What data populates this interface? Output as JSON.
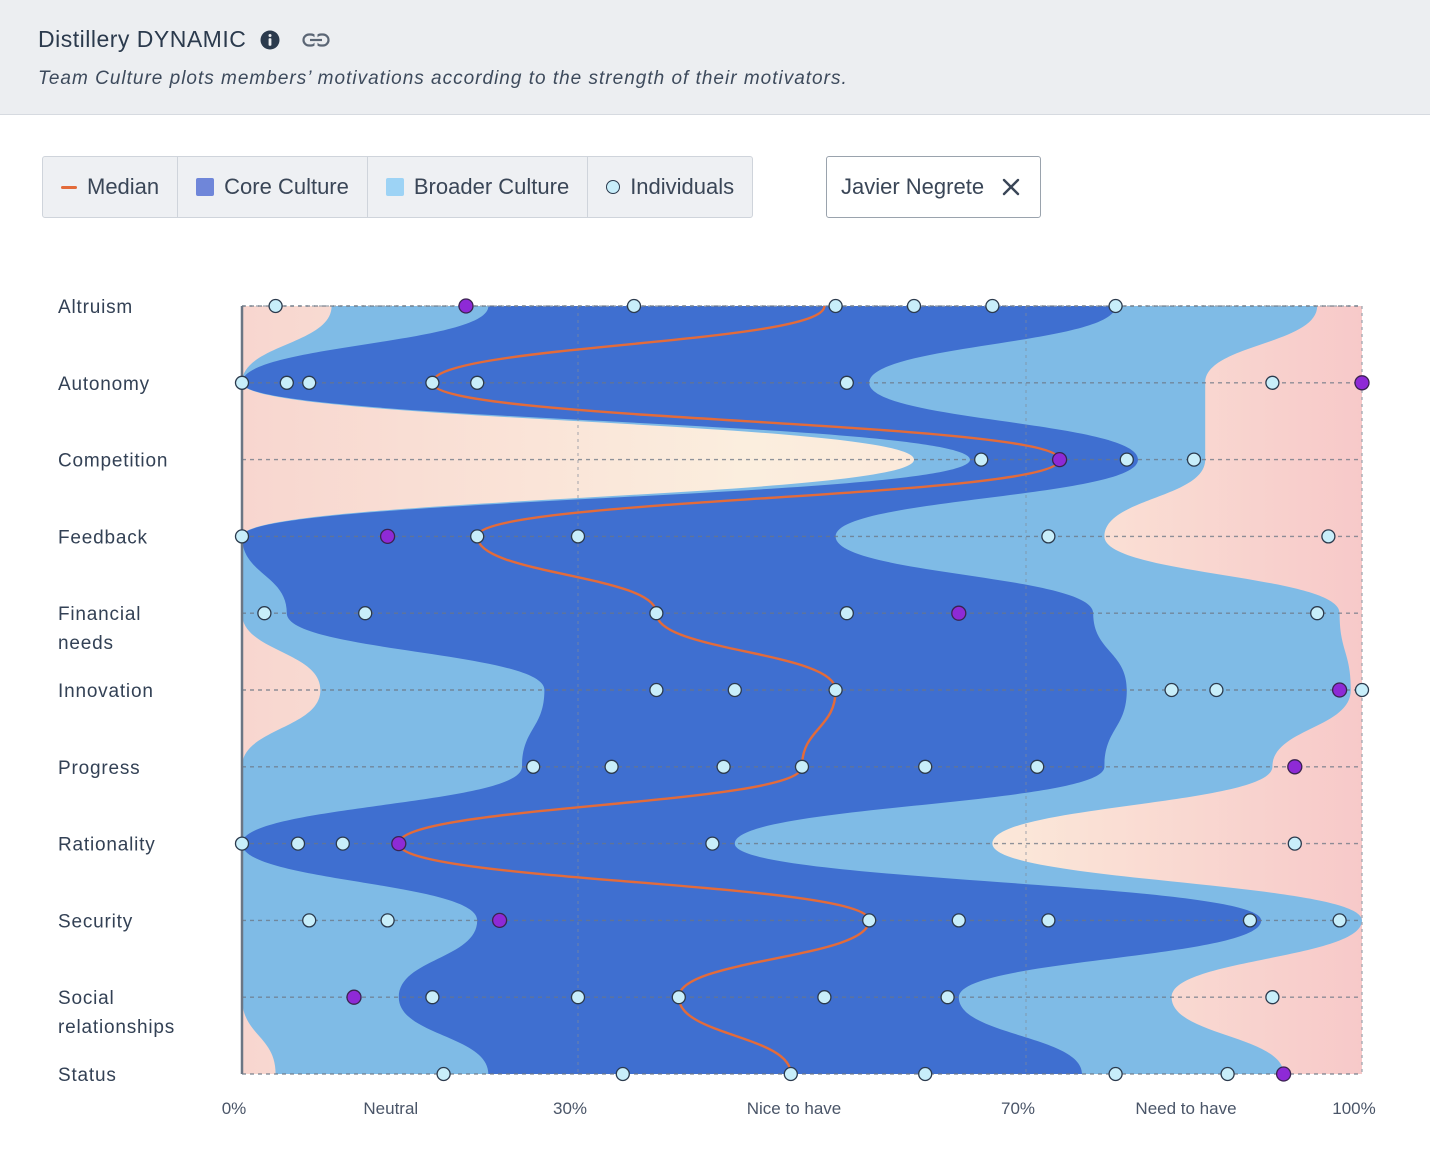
{
  "header": {
    "title": "Distillery DYNAMIC",
    "subtitle": "Team Culture plots members’ motivations according to the strength of their motivators."
  },
  "legend": {
    "median": "Median",
    "core": "Core Culture",
    "broader": "Broader Culture",
    "individuals": "Individuals"
  },
  "selected_person": "Javier Negrete",
  "colors": {
    "core": "#3f6fd0",
    "broader": "#7fbbe6",
    "background_low": "#f8d3cf",
    "background_mid": "#fbe9d6",
    "median": "#e36b3a",
    "individual": "#c8eefa",
    "highlight": "#8e2ad6"
  },
  "chart_data": {
    "type": "scatter",
    "xlim": [
      0,
      100
    ],
    "x_ticks": [
      {
        "value": 0,
        "label": "0%"
      },
      {
        "value": 14,
        "label": "Neutral"
      },
      {
        "value": 30,
        "label": "30%"
      },
      {
        "value": 50,
        "label": "Nice to have"
      },
      {
        "value": 70,
        "label": "70%"
      },
      {
        "value": 85,
        "label": "Need to have"
      },
      {
        "value": 100,
        "label": "100%"
      }
    ],
    "categories": [
      {
        "name": [
          "Altruism"
        ],
        "individuals": [
          3,
          35,
          53,
          60,
          67,
          78
        ],
        "highlight": 20,
        "median": 52,
        "core": [
          22,
          78
        ],
        "broader": [
          8,
          96
        ]
      },
      {
        "name": [
          "Autonomy"
        ],
        "individuals": [
          0,
          4,
          6,
          17,
          21,
          54,
          92
        ],
        "highlight": 100,
        "median": 17,
        "core": [
          0,
          56
        ],
        "broader": [
          0,
          86
        ]
      },
      {
        "name": [
          "Competition"
        ],
        "individuals": [
          66,
          79,
          85
        ],
        "highlight": 73,
        "median": 73,
        "core": [
          65,
          80
        ],
        "broader": [
          60,
          86
        ]
      },
      {
        "name": [
          "Feedback"
        ],
        "individuals": [
          0,
          21,
          30,
          72,
          97
        ],
        "highlight": 13,
        "median": 21,
        "core": [
          0,
          53
        ],
        "broader": [
          0,
          77
        ]
      },
      {
        "name": [
          "Financial",
          "needs"
        ],
        "individuals": [
          2,
          11,
          37,
          54,
          96
        ],
        "highlight": 64,
        "median": 37,
        "core": [
          4,
          76
        ],
        "broader": [
          0,
          98
        ]
      },
      {
        "name": [
          "Innovation"
        ],
        "individuals": [
          37,
          44,
          53,
          83,
          87,
          100
        ],
        "highlight": 98,
        "median": 53,
        "core": [
          27,
          79
        ],
        "broader": [
          7,
          99
        ]
      },
      {
        "name": [
          "Progress"
        ],
        "individuals": [
          26,
          33,
          43,
          50,
          61,
          71
        ],
        "highlight": 94,
        "median": 50,
        "core": [
          25,
          77
        ],
        "broader": [
          0,
          92
        ]
      },
      {
        "name": [
          "Rationality"
        ],
        "individuals": [
          0,
          5,
          9,
          42,
          94
        ],
        "highlight": 14,
        "median": 14,
        "core": [
          0,
          44
        ],
        "broader": [
          0,
          67
        ]
      },
      {
        "name": [
          "Security"
        ],
        "individuals": [
          6,
          13,
          56,
          64,
          72,
          90,
          98
        ],
        "highlight": 23,
        "median": 56,
        "core": [
          21,
          91
        ],
        "broader": [
          0,
          100
        ]
      },
      {
        "name": [
          "Social",
          "relationships"
        ],
        "individuals": [
          17,
          30,
          39,
          52,
          63,
          92
        ],
        "highlight": 10,
        "median": 39,
        "core": [
          14,
          64
        ],
        "broader": [
          0,
          83
        ]
      },
      {
        "name": [
          "Status"
        ],
        "individuals": [
          18,
          34,
          49,
          61,
          78,
          88
        ],
        "highlight": 93,
        "median": 49,
        "core": [
          22,
          75
        ],
        "broader": [
          3,
          93
        ]
      }
    ]
  }
}
